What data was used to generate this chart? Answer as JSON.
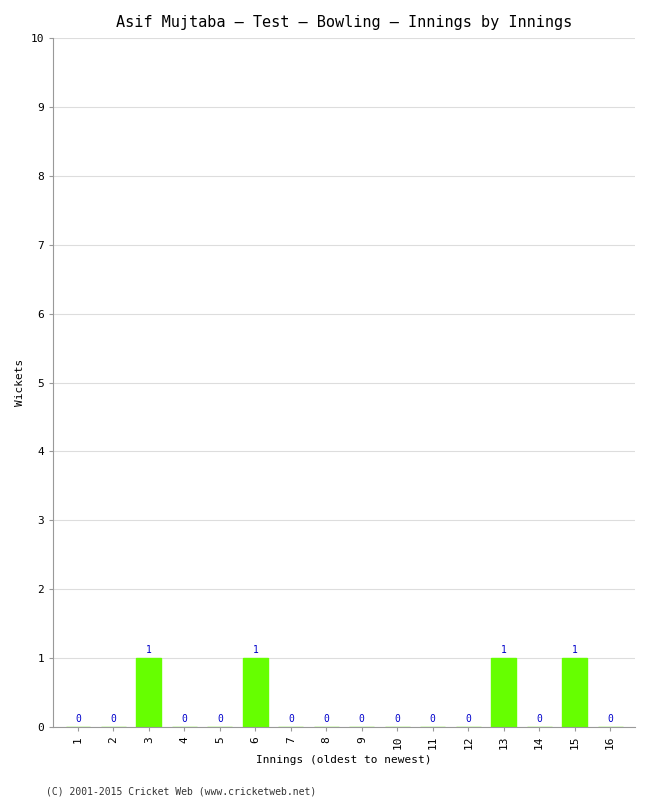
{
  "title": "Asif Mujtaba – Test – Bowling – Innings by Innings",
  "xlabel": "Innings (oldest to newest)",
  "ylabel": "Wickets",
  "innings": [
    1,
    2,
    3,
    4,
    5,
    6,
    7,
    8,
    9,
    10,
    11,
    12,
    13,
    14,
    15,
    16
  ],
  "wickets": [
    0,
    0,
    1,
    0,
    0,
    1,
    0,
    0,
    0,
    0,
    0,
    0,
    1,
    0,
    1,
    0
  ],
  "bar_color": "#66ff00",
  "label_color": "#0000cc",
  "ylim": [
    0,
    10
  ],
  "yticks": [
    0,
    1,
    2,
    3,
    4,
    5,
    6,
    7,
    8,
    9,
    10
  ],
  "background_color": "#ffffff",
  "plot_background": "#ffffff",
  "footer": "(C) 2001-2015 Cricket Web (www.cricketweb.net)",
  "title_fontsize": 11,
  "axis_label_fontsize": 8,
  "tick_fontsize": 8,
  "annotation_fontsize": 7,
  "footer_fontsize": 7
}
